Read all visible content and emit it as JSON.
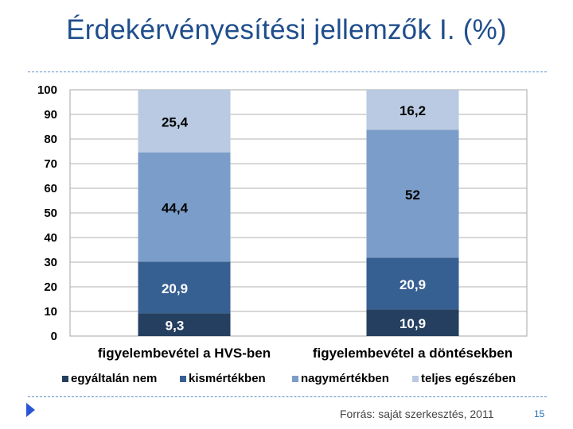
{
  "slide": {
    "title": "Érdekérvényesítési jellemzők I. (%)",
    "source_note": "Forrás: saját szerkesztés, 2011",
    "page_number": "15"
  },
  "chart_data": {
    "type": "bar",
    "stacked": true,
    "categories": [
      "figyelembevétel a HVS-ben",
      "figyelembevétel a döntésekben"
    ],
    "series": [
      {
        "name": "egyáltalán nem",
        "values": [
          9.3,
          10.9
        ],
        "labels": [
          "9,3",
          "10,9"
        ],
        "color": "#243f60"
      },
      {
        "name": "kismértékben",
        "values": [
          20.9,
          20.9
        ],
        "labels": [
          "20,9",
          "20,9"
        ],
        "color": "#376092"
      },
      {
        "name": "nagymértékben",
        "values": [
          44.4,
          52
        ],
        "labels": [
          "44,4",
          "52"
        ],
        "color": "#7b9dc9"
      },
      {
        "name": "teljes egészében",
        "values": [
          25.4,
          16.2
        ],
        "labels": [
          "25,4",
          "16,2"
        ],
        "color": "#b9cae2"
      }
    ],
    "ylim": [
      0,
      100
    ],
    "yticks": [
      "0",
      "10",
      "20",
      "30",
      "40",
      "50",
      "60",
      "70",
      "80",
      "90",
      "100"
    ],
    "grid": true,
    "legend": "bottom"
  }
}
